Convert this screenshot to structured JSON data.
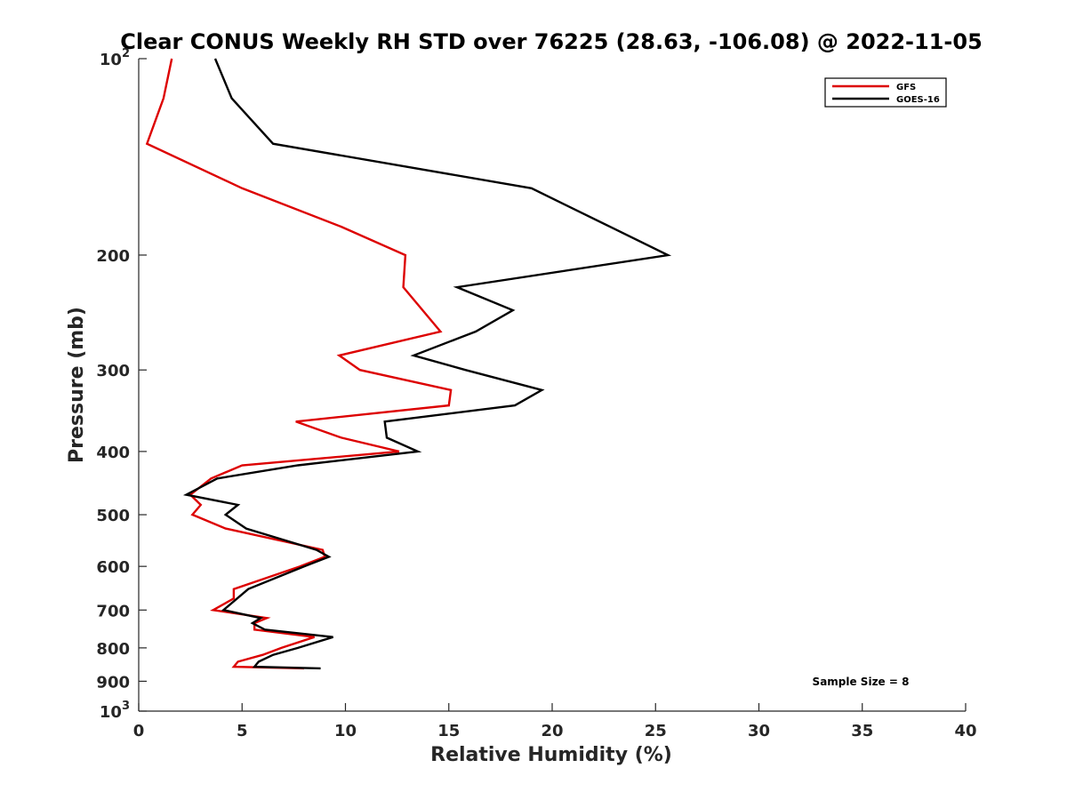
{
  "chart_data": {
    "type": "line",
    "title": "Clear CONUS Weekly RH STD over 76225 (28.63, -106.08) @ 2022-11-05",
    "xlabel": "Relative Humidity (%)",
    "ylabel": "Pressure (mb)",
    "xlim": [
      0,
      40
    ],
    "ylim": [
      100,
      1000
    ],
    "y_scale": "log",
    "y_reversed": true,
    "x_ticks": [
      {
        "value": 0,
        "label": "0"
      },
      {
        "value": 5,
        "label": "5"
      },
      {
        "value": 10,
        "label": "10"
      },
      {
        "value": 15,
        "label": "15"
      },
      {
        "value": 20,
        "label": "20"
      },
      {
        "value": 25,
        "label": "25"
      },
      {
        "value": 30,
        "label": "30"
      },
      {
        "value": 35,
        "label": "35"
      },
      {
        "value": 40,
        "label": "40"
      }
    ],
    "y_ticks": [
      {
        "value": 100,
        "label": "10",
        "sup": "2"
      },
      {
        "value": 200,
        "label": "200",
        "sup": ""
      },
      {
        "value": 300,
        "label": "300",
        "sup": ""
      },
      {
        "value": 400,
        "label": "400",
        "sup": ""
      },
      {
        "value": 500,
        "label": "500",
        "sup": ""
      },
      {
        "value": 600,
        "label": "600",
        "sup": ""
      },
      {
        "value": 700,
        "label": "700",
        "sup": ""
      },
      {
        "value": 800,
        "label": "800",
        "sup": ""
      },
      {
        "value": 900,
        "label": "900",
        "sup": ""
      },
      {
        "value": 1000,
        "label": "10",
        "sup": "3"
      }
    ],
    "legend_position": "top-right",
    "annotation": "Sample Size = 8",
    "series": [
      {
        "name": "GFS",
        "color": "#dd0000",
        "points": [
          {
            "rh": 1.6,
            "p": 100
          },
          {
            "rh": 1.2,
            "p": 115
          },
          {
            "rh": 0.4,
            "p": 135
          },
          {
            "rh": 5.0,
            "p": 158
          },
          {
            "rh": 9.8,
            "p": 181
          },
          {
            "rh": 12.9,
            "p": 200
          },
          {
            "rh": 12.8,
            "p": 224
          },
          {
            "rh": 14.6,
            "p": 262
          },
          {
            "rh": 9.7,
            "p": 285
          },
          {
            "rh": 10.7,
            "p": 300
          },
          {
            "rh": 15.1,
            "p": 322
          },
          {
            "rh": 15.0,
            "p": 340
          },
          {
            "rh": 7.6,
            "p": 360
          },
          {
            "rh": 9.8,
            "p": 381
          },
          {
            "rh": 12.6,
            "p": 400
          },
          {
            "rh": 5.0,
            "p": 420
          },
          {
            "rh": 3.5,
            "p": 440
          },
          {
            "rh": 2.5,
            "p": 466
          },
          {
            "rh": 3.0,
            "p": 483
          },
          {
            "rh": 2.6,
            "p": 500
          },
          {
            "rh": 4.2,
            "p": 525
          },
          {
            "rh": 8.9,
            "p": 566
          },
          {
            "rh": 9.0,
            "p": 580
          },
          {
            "rh": 7.8,
            "p": 600
          },
          {
            "rh": 4.6,
            "p": 650
          },
          {
            "rh": 4.6,
            "p": 672
          },
          {
            "rh": 3.6,
            "p": 700
          },
          {
            "rh": 6.2,
            "p": 720
          },
          {
            "rh": 5.6,
            "p": 733
          },
          {
            "rh": 5.6,
            "p": 750
          },
          {
            "rh": 8.5,
            "p": 770
          },
          {
            "rh": 6.9,
            "p": 800
          },
          {
            "rh": 6.0,
            "p": 820
          },
          {
            "rh": 4.8,
            "p": 840
          },
          {
            "rh": 4.6,
            "p": 855
          },
          {
            "rh": 8.0,
            "p": 860
          }
        ]
      },
      {
        "name": "GOES-16",
        "color": "#000000",
        "points": [
          {
            "rh": 3.7,
            "p": 100
          },
          {
            "rh": 4.5,
            "p": 115
          },
          {
            "rh": 6.5,
            "p": 135
          },
          {
            "rh": 19.0,
            "p": 158
          },
          {
            "rh": 22.8,
            "p": 181
          },
          {
            "rh": 25.6,
            "p": 200
          },
          {
            "rh": 15.4,
            "p": 224
          },
          {
            "rh": 18.1,
            "p": 243
          },
          {
            "rh": 16.3,
            "p": 262
          },
          {
            "rh": 13.3,
            "p": 285
          },
          {
            "rh": 15.8,
            "p": 300
          },
          {
            "rh": 19.5,
            "p": 322
          },
          {
            "rh": 18.2,
            "p": 340
          },
          {
            "rh": 11.9,
            "p": 360
          },
          {
            "rh": 12.0,
            "p": 381
          },
          {
            "rh": 13.5,
            "p": 400
          },
          {
            "rh": 7.7,
            "p": 420
          },
          {
            "rh": 3.8,
            "p": 440
          },
          {
            "rh": 2.3,
            "p": 466
          },
          {
            "rh": 4.8,
            "p": 483
          },
          {
            "rh": 4.2,
            "p": 500
          },
          {
            "rh": 5.2,
            "p": 525
          },
          {
            "rh": 8.6,
            "p": 566
          },
          {
            "rh": 9.2,
            "p": 580
          },
          {
            "rh": 8.0,
            "p": 600
          },
          {
            "rh": 5.3,
            "p": 650
          },
          {
            "rh": 4.1,
            "p": 700
          },
          {
            "rh": 5.9,
            "p": 720
          },
          {
            "rh": 5.5,
            "p": 733
          },
          {
            "rh": 6.1,
            "p": 750
          },
          {
            "rh": 9.4,
            "p": 770
          },
          {
            "rh": 7.7,
            "p": 800
          },
          {
            "rh": 6.5,
            "p": 820
          },
          {
            "rh": 5.8,
            "p": 840
          },
          {
            "rh": 5.6,
            "p": 855
          },
          {
            "rh": 8.8,
            "p": 860
          }
        ]
      }
    ]
  }
}
